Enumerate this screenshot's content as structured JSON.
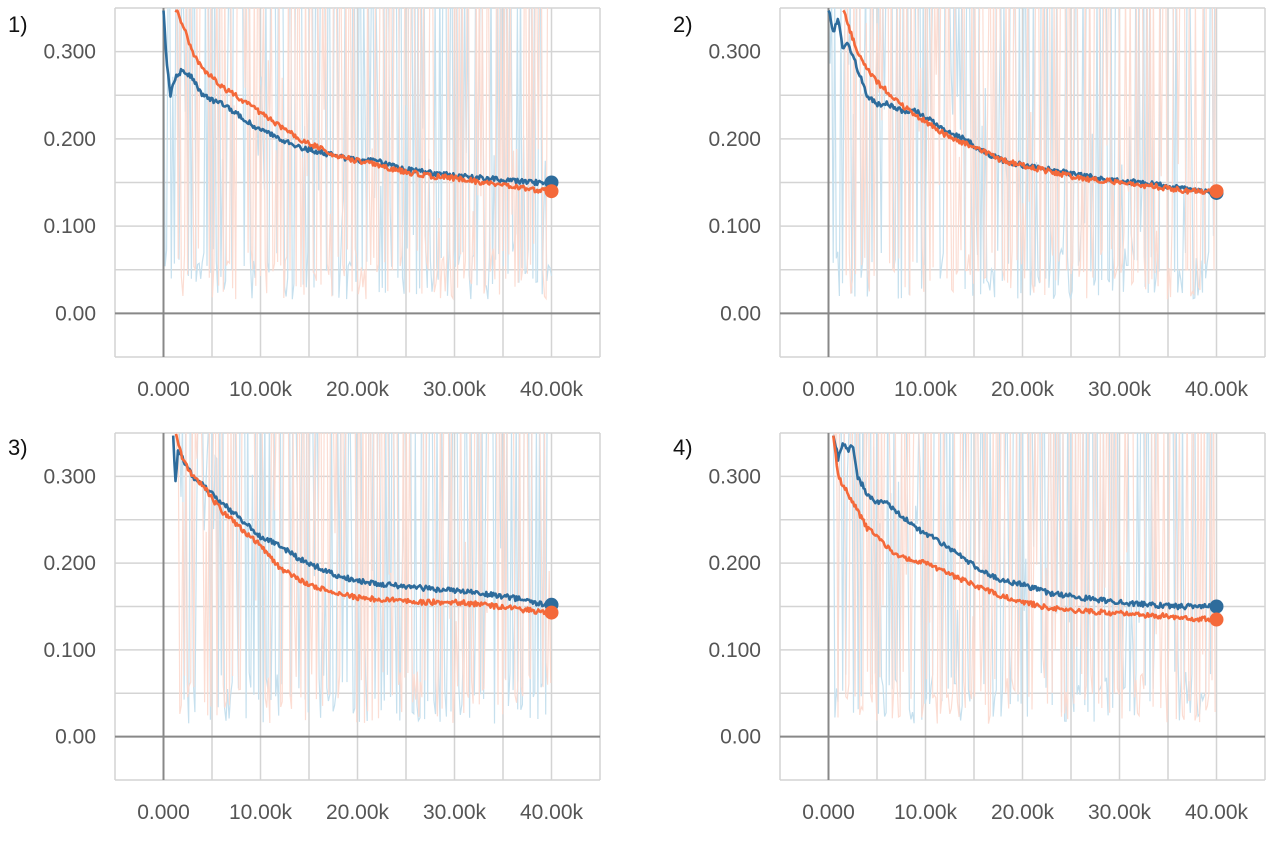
{
  "chart_data": [
    {
      "type": "line",
      "panel_label": "1)",
      "x_tick_labels": [
        "0.000",
        "10.00k",
        "20.00k",
        "30.00k",
        "40.00k"
      ],
      "y_tick_labels": [
        "0.00",
        "0.100",
        "0.200",
        "0.300"
      ],
      "xlim": [
        -5000,
        45000
      ],
      "ylim": [
        -0.05,
        0.35
      ],
      "colors": {
        "blue": "#2e6c9c",
        "orange": "#f4693a",
        "blue_raw": "#c6e0ee",
        "orange_raw": "#fcd9ce"
      },
      "series": [
        {
          "name": "blue",
          "x": [
            0,
            300,
            700,
            1200,
            2000,
            3000,
            4000,
            5000,
            6000,
            8000,
            10000,
            12000,
            14000,
            16000,
            18000,
            20000,
            22000,
            25000,
            28000,
            30000,
            33000,
            36000,
            38000,
            40000
          ],
          "y": [
            0.35,
            0.29,
            0.25,
            0.27,
            0.28,
            0.27,
            0.25,
            0.245,
            0.24,
            0.225,
            0.21,
            0.2,
            0.19,
            0.185,
            0.18,
            0.175,
            0.175,
            0.165,
            0.16,
            0.158,
            0.155,
            0.152,
            0.15,
            0.15
          ]
        },
        {
          "name": "orange",
          "x": [
            1200,
            2000,
            3000,
            4000,
            5000,
            6000,
            8000,
            10000,
            12000,
            14000,
            16000,
            18000,
            20000,
            22000,
            25000,
            28000,
            30000,
            33000,
            36000,
            38000,
            40000
          ],
          "y": [
            0.35,
            0.33,
            0.3,
            0.28,
            0.27,
            0.26,
            0.245,
            0.23,
            0.215,
            0.2,
            0.19,
            0.18,
            0.175,
            0.17,
            0.162,
            0.157,
            0.155,
            0.15,
            0.145,
            0.142,
            0.14
          ]
        }
      ]
    },
    {
      "type": "line",
      "panel_label": "2)",
      "x_tick_labels": [
        "0.000",
        "10.00k",
        "20.00k",
        "30.00k",
        "40.00k"
      ],
      "y_tick_labels": [
        "0.00",
        "0.100",
        "0.200",
        "0.300"
      ],
      "xlim": [
        -5000,
        45000
      ],
      "ylim": [
        -0.05,
        0.35
      ],
      "colors": {
        "blue": "#2e6c9c",
        "orange": "#f4693a",
        "blue_raw": "#c6e0ee",
        "orange_raw": "#fcd9ce"
      },
      "series": [
        {
          "name": "blue",
          "x": [
            0,
            500,
            1000,
            1500,
            2000,
            3000,
            4000,
            5000,
            6000,
            7000,
            8000,
            9000,
            10000,
            12000,
            14000,
            16000,
            18000,
            20000,
            23000,
            26000,
            30000,
            34000,
            37000,
            40000
          ],
          "y": [
            0.35,
            0.32,
            0.34,
            0.3,
            0.31,
            0.28,
            0.25,
            0.24,
            0.24,
            0.235,
            0.23,
            0.232,
            0.225,
            0.21,
            0.2,
            0.185,
            0.175,
            0.17,
            0.165,
            0.158,
            0.152,
            0.148,
            0.142,
            0.138
          ]
        },
        {
          "name": "orange",
          "x": [
            1500,
            2000,
            3000,
            4000,
            5000,
            6000,
            7000,
            8000,
            10000,
            12000,
            14000,
            16000,
            18000,
            20000,
            23000,
            26000,
            30000,
            34000,
            37000,
            40000
          ],
          "y": [
            0.35,
            0.33,
            0.3,
            0.28,
            0.265,
            0.255,
            0.245,
            0.235,
            0.22,
            0.205,
            0.195,
            0.185,
            0.175,
            0.17,
            0.162,
            0.155,
            0.15,
            0.145,
            0.14,
            0.14
          ]
        }
      ]
    },
    {
      "type": "line",
      "panel_label": "3)",
      "x_tick_labels": [
        "0.000",
        "10.00k",
        "20.00k",
        "30.00k",
        "40.00k"
      ],
      "y_tick_labels": [
        "0.00",
        "0.100",
        "0.200",
        "0.300"
      ],
      "xlim": [
        -5000,
        45000
      ],
      "ylim": [
        -0.05,
        0.35
      ],
      "colors": {
        "blue": "#2e6c9c",
        "orange": "#f4693a",
        "blue_raw": "#c6e0ee",
        "orange_raw": "#fcd9ce"
      },
      "series": [
        {
          "name": "blue",
          "x": [
            1000,
            1200,
            1500,
            2000,
            3000,
            4000,
            5000,
            6000,
            7000,
            8000,
            10000,
            12000,
            14000,
            16000,
            18000,
            20000,
            23000,
            26000,
            30000,
            33000,
            36000,
            38000,
            40000
          ],
          "y": [
            0.35,
            0.29,
            0.33,
            0.32,
            0.3,
            0.29,
            0.28,
            0.27,
            0.26,
            0.25,
            0.23,
            0.22,
            0.205,
            0.195,
            0.185,
            0.18,
            0.175,
            0.172,
            0.168,
            0.165,
            0.16,
            0.155,
            0.152
          ]
        },
        {
          "name": "orange",
          "x": [
            1200,
            2000,
            3000,
            4000,
            5000,
            6000,
            7000,
            8000,
            10000,
            12000,
            14000,
            16000,
            18000,
            20000,
            23000,
            26000,
            30000,
            33000,
            36000,
            38000,
            40000
          ],
          "y": [
            0.35,
            0.32,
            0.3,
            0.29,
            0.275,
            0.26,
            0.25,
            0.24,
            0.22,
            0.195,
            0.18,
            0.172,
            0.165,
            0.16,
            0.158,
            0.155,
            0.155,
            0.152,
            0.148,
            0.145,
            0.143
          ]
        }
      ]
    },
    {
      "type": "line",
      "panel_label": "4)",
      "x_tick_labels": [
        "0.000",
        "10.00k",
        "20.00k",
        "30.00k",
        "40.00k"
      ],
      "y_tick_labels": [
        "0.00",
        "0.100",
        "0.200",
        "0.300"
      ],
      "xlim": [
        -5000,
        45000
      ],
      "ylim": [
        -0.05,
        0.35
      ],
      "colors": {
        "blue": "#2e6c9c",
        "orange": "#f4693a",
        "blue_raw": "#c6e0ee",
        "orange_raw": "#fcd9ce"
      },
      "series": [
        {
          "name": "blue",
          "x": [
            500,
            1000,
            1500,
            2000,
            2500,
            3000,
            4000,
            5000,
            6000,
            7000,
            8000,
            9000,
            10000,
            12000,
            14000,
            16000,
            18000,
            20000,
            23000,
            26000,
            30000,
            33000,
            36000,
            40000
          ],
          "y": [
            0.35,
            0.32,
            0.34,
            0.33,
            0.335,
            0.3,
            0.28,
            0.27,
            0.27,
            0.26,
            0.25,
            0.24,
            0.235,
            0.22,
            0.205,
            0.19,
            0.18,
            0.175,
            0.165,
            0.16,
            0.155,
            0.152,
            0.15,
            0.15
          ]
        },
        {
          "name": "orange",
          "x": [
            500,
            1000,
            2000,
            3000,
            4000,
            5000,
            6000,
            7000,
            8000,
            10000,
            12000,
            14000,
            16000,
            18000,
            20000,
            23000,
            26000,
            30000,
            33000,
            36000,
            38000,
            40000
          ],
          "y": [
            0.35,
            0.3,
            0.28,
            0.26,
            0.24,
            0.23,
            0.22,
            0.21,
            0.205,
            0.2,
            0.19,
            0.18,
            0.17,
            0.162,
            0.155,
            0.148,
            0.145,
            0.142,
            0.14,
            0.138,
            0.136,
            0.135
          ]
        }
      ]
    }
  ]
}
